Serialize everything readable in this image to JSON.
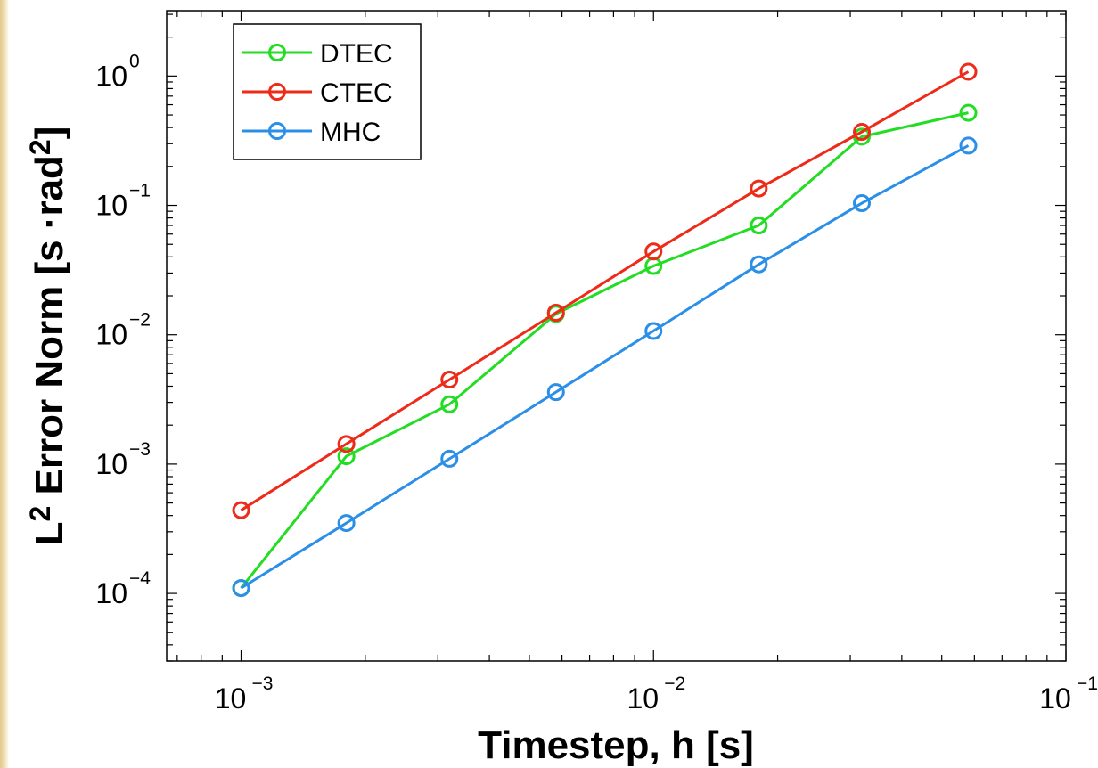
{
  "chart_data": {
    "type": "line",
    "x_scale": "log",
    "y_scale": "log",
    "xlim": [
      0.00066,
      0.1
    ],
    "ylim": [
      3e-05,
      3.2
    ],
    "x_ticks": [
      {
        "value": 0.001,
        "base": "10",
        "exp": "−3"
      },
      {
        "value": 0.01,
        "base": "10",
        "exp": "−2"
      },
      {
        "value": 0.1,
        "base": "10",
        "exp": "−1"
      }
    ],
    "y_ticks": [
      {
        "value": 0.0001,
        "base": "10",
        "exp": "−4"
      },
      {
        "value": 0.001,
        "base": "10",
        "exp": "−3"
      },
      {
        "value": 0.01,
        "base": "10",
        "exp": "−2"
      },
      {
        "value": 0.1,
        "base": "10",
        "exp": "−1"
      },
      {
        "value": 1,
        "base": "10",
        "exp": "0"
      }
    ],
    "xlabel": "Timestep, h  [s]",
    "ylabel": {
      "prefix": "L",
      "prefix_sup": "2",
      "main": " Error Norm [s ·rad",
      "unit_sup": "2",
      "suffix": "]"
    },
    "legend_position": "top-left",
    "grid": false,
    "x": [
      0.001,
      0.0018,
      0.0032,
      0.0058,
      0.01,
      0.018,
      0.032,
      0.058
    ],
    "series": [
      {
        "name": "DTEC",
        "color": "#22dd22",
        "values": [
          0.00011,
          0.00115,
          0.0029,
          0.0145,
          0.034,
          0.07,
          0.34,
          0.52
        ]
      },
      {
        "name": "CTEC",
        "color": "#ee2a18",
        "values": [
          0.00044,
          0.00143,
          0.0045,
          0.0148,
          0.044,
          0.135,
          0.37,
          1.08
        ]
      },
      {
        "name": "MHC",
        "color": "#2b8fe8",
        "values": [
          0.00011,
          0.00035,
          0.0011,
          0.0036,
          0.0107,
          0.035,
          0.104,
          0.29
        ]
      }
    ]
  }
}
